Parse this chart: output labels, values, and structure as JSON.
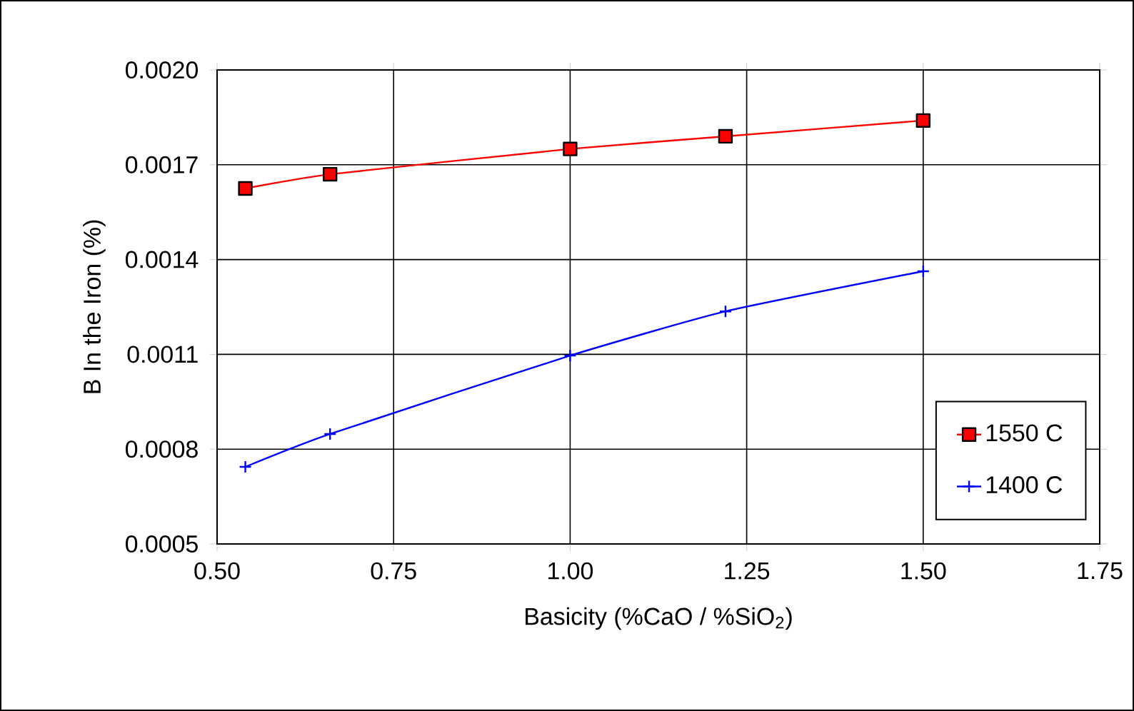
{
  "chart_data": {
    "type": "line",
    "xlabel": "Basicity (%CaO / %SiO$_{2}$)",
    "ylabel": "B In the Iron (%)",
    "x": [
      0.54,
      0.66,
      1.0,
      1.22,
      1.5
    ],
    "series": [
      {
        "name": "1550 C",
        "color": "#ff0000",
        "marker": "square",
        "values": [
          0.001625,
          0.00167,
          0.00175,
          0.00179,
          0.00184
        ]
      },
      {
        "name": "1400 C",
        "color": "#0000ff",
        "marker": "cross",
        "values": [
          0.000744,
          0.000848,
          0.001096,
          0.001236,
          0.001363
        ]
      }
    ],
    "xlim": [
      0.5,
      1.75
    ],
    "ylim": [
      0.0005,
      0.002
    ],
    "xticks": [
      {
        "value": 0.5,
        "label": "0.50"
      },
      {
        "value": 0.75,
        "label": "0.75"
      },
      {
        "value": 1.0,
        "label": "1.00"
      },
      {
        "value": 1.25,
        "label": "1.25"
      },
      {
        "value": 1.5,
        "label": "1.50"
      },
      {
        "value": 1.75,
        "label": "1.75"
      }
    ],
    "yticks": [
      {
        "value": 0.0005,
        "label": "0.0005"
      },
      {
        "value": 0.0008,
        "label": "0.0008"
      },
      {
        "value": 0.0011,
        "label": "0.0011"
      },
      {
        "value": 0.0014,
        "label": "0.0014"
      },
      {
        "value": 0.0017,
        "label": "0.0017"
      },
      {
        "value": 0.002,
        "label": "0.0020"
      }
    ],
    "grid": true,
    "legend": "bottom right",
    "line_style": "solid"
  }
}
